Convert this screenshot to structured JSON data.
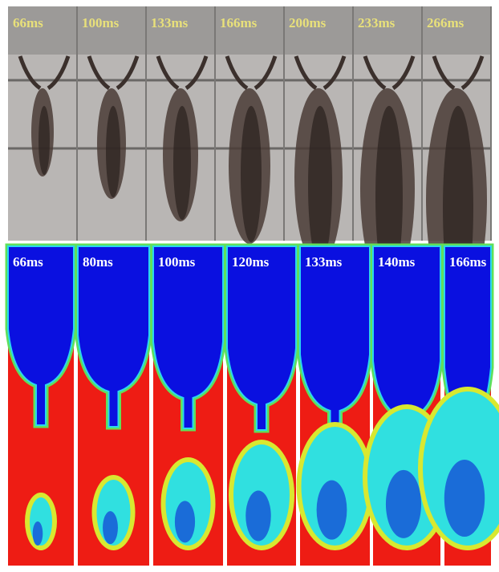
{
  "top_row": {
    "labels": [
      "66ms",
      "100ms",
      "133ms",
      "166ms",
      "200ms",
      "233ms",
      "266ms"
    ]
  },
  "bottom_row": {
    "labels": [
      "66ms",
      "80ms",
      "100ms",
      "120ms",
      "133ms",
      "140ms",
      "166ms"
    ]
  }
}
